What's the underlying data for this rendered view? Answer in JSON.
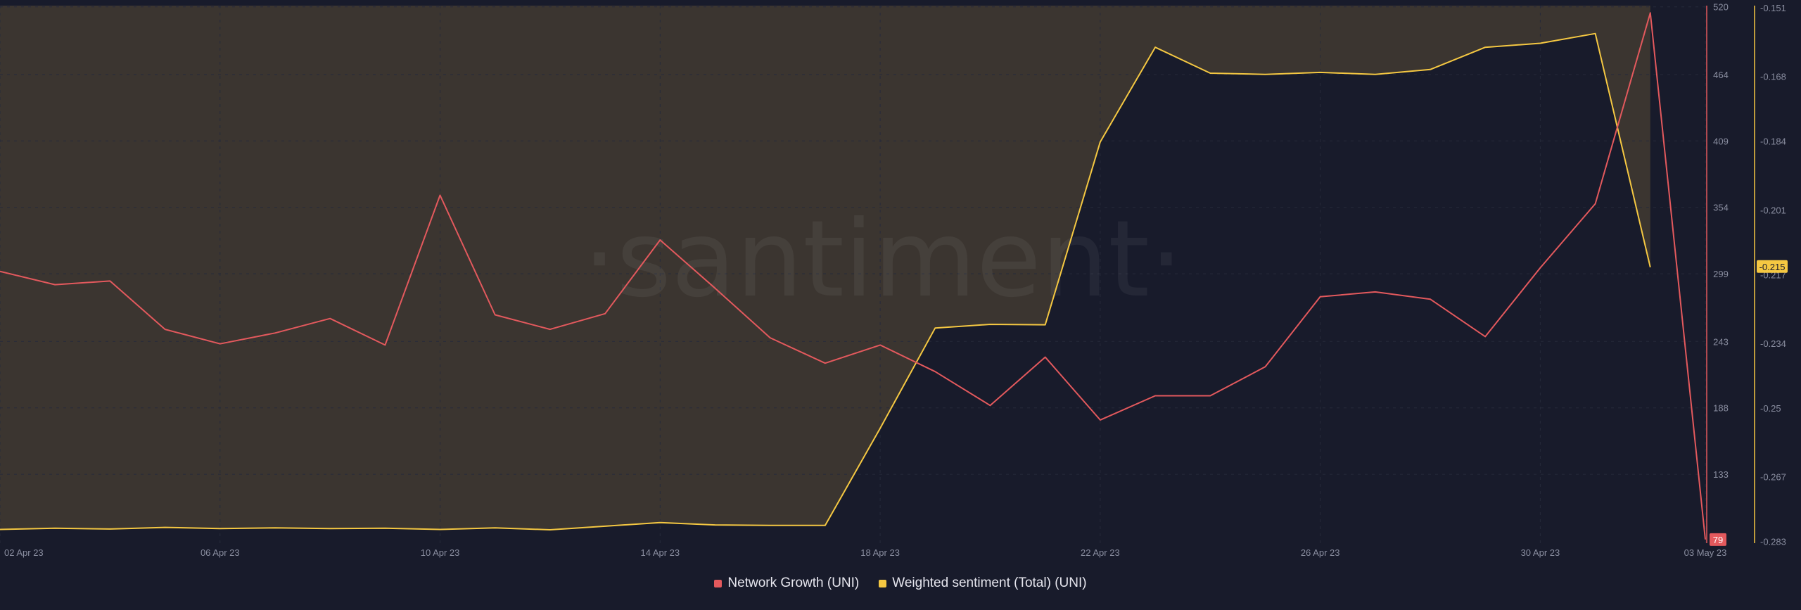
{
  "colors": {
    "background": "#181b2b",
    "network_growth": "#e3595d",
    "weighted_sentiment": "#f5c842",
    "positive_fill": "#3b3530",
    "grid": "#262a3a"
  },
  "watermark": "·santiment·",
  "chart_data": {
    "type": "line",
    "x": [
      "02 Apr 23",
      "03 Apr 23",
      "04 Apr 23",
      "05 Apr 23",
      "06 Apr 23",
      "07 Apr 23",
      "08 Apr 23",
      "09 Apr 23",
      "10 Apr 23",
      "11 Apr 23",
      "12 Apr 23",
      "13 Apr 23",
      "14 Apr 23",
      "15 Apr 23",
      "16 Apr 23",
      "17 Apr 23",
      "18 Apr 23",
      "19 Apr 23",
      "20 Apr 23",
      "21 Apr 23",
      "22 Apr 23",
      "23 Apr 23",
      "24 Apr 23",
      "25 Apr 23",
      "26 Apr 23",
      "27 Apr 23",
      "28 Apr 23",
      "29 Apr 23",
      "30 Apr 23",
      "01 May 23",
      "02 May 23",
      "03 May 23"
    ],
    "x_tick_labels": [
      "02 Apr 23",
      "06 Apr 23",
      "10 Apr 23",
      "14 Apr 23",
      "18 Apr 23",
      "22 Apr 23",
      "26 Apr 23",
      "30 Apr 23",
      "03 May 23"
    ],
    "series": [
      {
        "name": "Network Growth (UNI)",
        "axis": "left",
        "values": [
          301,
          290,
          293,
          253,
          241,
          250,
          262,
          240,
          364,
          265,
          253,
          266,
          327,
          287,
          246,
          225,
          240,
          218,
          190,
          230,
          178,
          198,
          198,
          222,
          280,
          284,
          278,
          247,
          304,
          357,
          515,
          79
        ]
      },
      {
        "name": "Weighted sentiment (Total) (UNI)",
        "axis": "right",
        "values": [
          -0.28,
          -0.2797,
          -0.2799,
          -0.2795,
          -0.2798,
          -0.2796,
          -0.2798,
          -0.2797,
          -0.28,
          -0.2796,
          -0.2801,
          -0.2792,
          -0.2783,
          -0.2789,
          -0.279,
          -0.279,
          -0.255,
          -0.2302,
          -0.2293,
          -0.2294,
          -0.1842,
          -0.1608,
          -0.1672,
          -0.1675,
          -0.167,
          -0.1675,
          -0.1663,
          -0.1608,
          -0.1598,
          -0.1574,
          -0.2152,
          null
        ]
      }
    ],
    "y_left": {
      "ticks": [
        "520",
        "464",
        "409",
        "354",
        "299",
        "243",
        "188",
        "133"
      ],
      "current_value": "79",
      "ylim": [
        76,
        521
      ]
    },
    "y_right": {
      "ticks": [
        "-0.151",
        "-0.168",
        "-0.184",
        "-0.201",
        "-0.217",
        "-0.234",
        "-0.25",
        "-0.267",
        "-0.283"
      ],
      "current_value": "-0.215",
      "ylim": [
        -0.2834,
        -0.1505
      ]
    },
    "legend_position": "bottom-center",
    "grid": true
  }
}
